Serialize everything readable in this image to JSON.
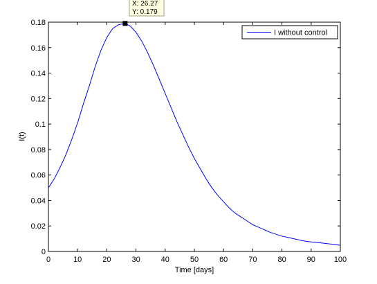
{
  "chart_data": {
    "type": "line",
    "title": "",
    "xlabel": "Time [days]",
    "ylabel": "I(t)",
    "xlim": [
      0,
      100
    ],
    "ylim": [
      0,
      0.18
    ],
    "x_ticks": [
      0,
      10,
      20,
      30,
      40,
      50,
      60,
      70,
      80,
      90,
      100
    ],
    "y_ticks": [
      0,
      0.02,
      0.04,
      0.06,
      0.08,
      0.1,
      0.12,
      0.14,
      0.16,
      0.18
    ],
    "x_tick_labels": [
      "0",
      "10",
      "20",
      "30",
      "40",
      "50",
      "60",
      "70",
      "80",
      "90",
      "100"
    ],
    "y_tick_labels": [
      "0",
      "0.02",
      "0.04",
      "0.06",
      "0.08",
      "0.1",
      "0.12",
      "0.14",
      "0.16",
      "0.18"
    ],
    "grid": false,
    "legend_position": "top-right",
    "series": [
      {
        "name": "I without control",
        "color": "#0000ff",
        "x": [
          0,
          2,
          4,
          6,
          8,
          10,
          12,
          14,
          16,
          18,
          20,
          22,
          24,
          26.27,
          28,
          30,
          32,
          34,
          36,
          38,
          40,
          42,
          44,
          46,
          48,
          50,
          52,
          54,
          56,
          58,
          60,
          62,
          64,
          66,
          68,
          70,
          72,
          74,
          76,
          78,
          80,
          82,
          84,
          86,
          88,
          90,
          92,
          94,
          96,
          98,
          100
        ],
        "y": [
          0.05,
          0.057,
          0.066,
          0.076,
          0.088,
          0.101,
          0.116,
          0.13,
          0.145,
          0.158,
          0.168,
          0.175,
          0.178,
          0.179,
          0.177,
          0.172,
          0.165,
          0.156,
          0.146,
          0.135,
          0.124,
          0.113,
          0.102,
          0.092,
          0.082,
          0.073,
          0.065,
          0.057,
          0.05,
          0.044,
          0.039,
          0.034,
          0.03,
          0.027,
          0.024,
          0.021,
          0.019,
          0.017,
          0.015,
          0.0135,
          0.012,
          0.011,
          0.01,
          0.009,
          0.008,
          0.0075,
          0.007,
          0.0065,
          0.006,
          0.0055,
          0.0048
        ]
      }
    ],
    "datatip": {
      "x": 26.27,
      "y": 0.179,
      "x_text": "X: 26.27",
      "y_text": "Y: 0.179"
    }
  },
  "colors": {
    "line": "#0000ff",
    "axes": "#000000",
    "tip_background": "#ffffe1",
    "tip_border": "#a0a080"
  }
}
